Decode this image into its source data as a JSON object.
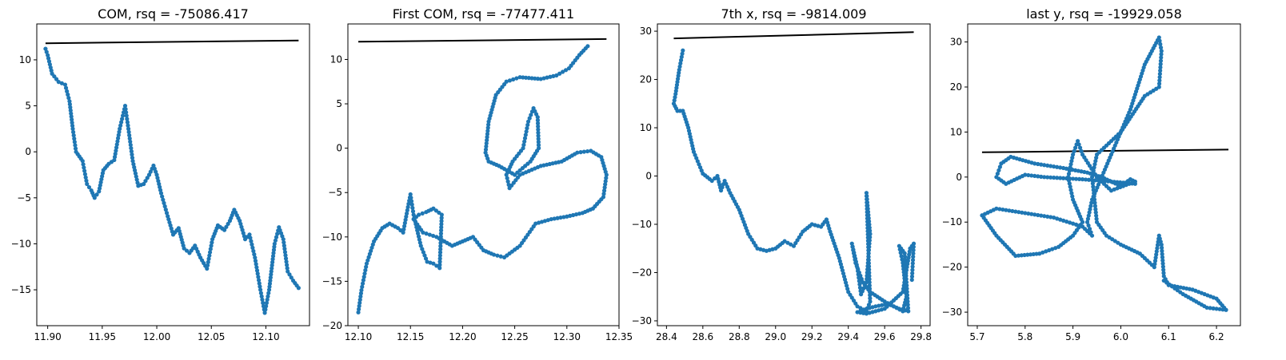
{
  "colors": {
    "scatter": "#1f77b4",
    "fit_line": "#000000",
    "axes": "#000000",
    "background": "#ffffff"
  },
  "chart_data": [
    {
      "type": "scatter",
      "title": "COM, rsq = -75086.417",
      "xlabel": "",
      "ylabel": "",
      "xlim": [
        11.89,
        12.14
      ],
      "ylim": [
        -18.9,
        13.9
      ],
      "xticks": [
        "11.90",
        "11.95",
        "12.00",
        "12.05",
        "12.10"
      ],
      "yticks": [
        "10",
        "5",
        "0",
        "−5",
        "−10",
        "−15"
      ],
      "grid": false,
      "fit_line": {
        "x": [
          11.898,
          12.13
        ],
        "y": [
          11.8,
          12.1
        ]
      },
      "series": [
        {
          "path": [
            [
              11.898,
              11.2
            ],
            [
              11.9,
              10.5
            ],
            [
              11.904,
              8.5
            ],
            [
              11.91,
              7.6
            ],
            [
              11.916,
              7.3
            ],
            [
              11.92,
              5.5
            ],
            [
              11.923,
              2.5
            ],
            [
              11.926,
              0.0
            ],
            [
              11.932,
              -1.0
            ],
            [
              11.936,
              -3.5
            ],
            [
              11.94,
              -4.2
            ],
            [
              11.943,
              -5.0
            ],
            [
              11.947,
              -4.3
            ],
            [
              11.951,
              -2.0
            ],
            [
              11.956,
              -1.3
            ],
            [
              11.961,
              -0.9
            ],
            [
              11.966,
              2.5
            ],
            [
              11.971,
              5.0
            ],
            [
              11.974,
              2.5
            ],
            [
              11.978,
              -1.0
            ],
            [
              11.983,
              -3.7
            ],
            [
              11.988,
              -3.5
            ],
            [
              11.993,
              -2.5
            ],
            [
              11.997,
              -1.5
            ],
            [
              12.0,
              -2.5
            ],
            [
              12.004,
              -4.5
            ],
            [
              12.01,
              -7.0
            ],
            [
              12.015,
              -9.0
            ],
            [
              12.02,
              -8.3
            ],
            [
              12.025,
              -10.5
            ],
            [
              12.03,
              -11.0
            ],
            [
              12.035,
              -10.2
            ],
            [
              12.04,
              -11.5
            ],
            [
              12.046,
              -12.7
            ],
            [
              12.051,
              -9.5
            ],
            [
              12.056,
              -8.0
            ],
            [
              12.062,
              -8.5
            ],
            [
              12.067,
              -7.5
            ],
            [
              12.071,
              -6.3
            ],
            [
              12.076,
              -7.5
            ],
            [
              12.081,
              -9.5
            ],
            [
              12.085,
              -9.0
            ],
            [
              12.09,
              -11.5
            ],
            [
              12.095,
              -15.0
            ],
            [
              12.099,
              -17.5
            ],
            [
              12.103,
              -15.0
            ],
            [
              12.108,
              -10.0
            ],
            [
              12.112,
              -8.2
            ],
            [
              12.116,
              -9.5
            ],
            [
              12.12,
              -13.0
            ],
            [
              12.125,
              -14.0
            ],
            [
              12.13,
              -14.8
            ]
          ]
        }
      ]
    },
    {
      "type": "scatter",
      "title": "First COM, rsq = -77477.411",
      "xlabel": "",
      "ylabel": "",
      "xlim": [
        12.09,
        12.35
      ],
      "ylim": [
        -20,
        14
      ],
      "xticks": [
        "12.10",
        "12.15",
        "12.20",
        "12.25",
        "12.30",
        "12.35"
      ],
      "yticks": [
        "10",
        "5",
        "0",
        "−5",
        "−10",
        "−15",
        "−20"
      ],
      "grid": false,
      "fit_line": {
        "x": [
          12.1,
          12.338
        ],
        "y": [
          12.0,
          12.3
        ]
      },
      "series": [
        {
          "path": [
            [
              12.1,
              -18.5
            ],
            [
              12.103,
              -16.0
            ],
            [
              12.108,
              -13.0
            ],
            [
              12.115,
              -10.5
            ],
            [
              12.123,
              -9.0
            ],
            [
              12.13,
              -8.5
            ],
            [
              12.138,
              -9.0
            ],
            [
              12.143,
              -9.5
            ],
            [
              12.147,
              -7.0
            ],
            [
              12.15,
              -5.2
            ],
            [
              12.153,
              -7.5
            ],
            [
              12.16,
              -11.0
            ],
            [
              12.166,
              -12.8
            ],
            [
              12.172,
              -13.0
            ],
            [
              12.178,
              -13.5
            ],
            [
              12.18,
              -7.5
            ],
            [
              12.172,
              -6.8
            ],
            [
              12.165,
              -7.2
            ],
            [
              12.158,
              -7.5
            ],
            [
              12.153,
              -8.0
            ],
            [
              12.162,
              -9.5
            ],
            [
              12.175,
              -10.0
            ],
            [
              12.19,
              -11.0
            ],
            [
              12.2,
              -10.5
            ],
            [
              12.21,
              -10.0
            ],
            [
              12.22,
              -11.5
            ],
            [
              12.23,
              -12.0
            ],
            [
              12.24,
              -12.3
            ],
            [
              12.255,
              -11.0
            ],
            [
              12.27,
              -8.5
            ],
            [
              12.285,
              -8.0
            ],
            [
              12.3,
              -7.7
            ],
            [
              12.315,
              -7.3
            ],
            [
              12.325,
              -6.8
            ],
            [
              12.335,
              -5.5
            ],
            [
              12.338,
              -3.0
            ],
            [
              12.333,
              -1.0
            ],
            [
              12.323,
              -0.3
            ],
            [
              12.31,
              -0.5
            ],
            [
              12.295,
              -1.5
            ],
            [
              12.275,
              -2.0
            ],
            [
              12.255,
              -3.0
            ],
            [
              12.245,
              -4.5
            ],
            [
              12.242,
              -3.0
            ],
            [
              12.248,
              -1.5
            ],
            [
              12.258,
              0.0
            ],
            [
              12.263,
              3.0
            ],
            [
              12.268,
              4.5
            ],
            [
              12.272,
              3.5
            ],
            [
              12.273,
              0.0
            ],
            [
              12.265,
              -1.5
            ],
            [
              12.25,
              -3.0
            ],
            [
              12.235,
              -2.0
            ],
            [
              12.225,
              -1.5
            ],
            [
              12.222,
              -0.5
            ],
            [
              12.225,
              3.0
            ],
            [
              12.232,
              6.0
            ],
            [
              12.242,
              7.5
            ],
            [
              12.255,
              8.0
            ],
            [
              12.275,
              7.8
            ],
            [
              12.29,
              8.2
            ],
            [
              12.302,
              9.0
            ],
            [
              12.312,
              10.5
            ],
            [
              12.32,
              11.5
            ]
          ]
        }
      ]
    },
    {
      "type": "scatter",
      "title": "7th x, rsq = -9814.009",
      "xlabel": "",
      "ylabel": "",
      "xlim": [
        28.35,
        29.85
      ],
      "ylim": [
        -31,
        31.5
      ],
      "xticks": [
        "28.4",
        "28.6",
        "28.8",
        "29.0",
        "29.2",
        "29.4",
        "29.6",
        "29.8"
      ],
      "yticks": [
        "30",
        "20",
        "10",
        "0",
        "−10",
        "−20",
        "−30"
      ],
      "grid": false,
      "fit_line": {
        "x": [
          28.44,
          29.76
        ],
        "y": [
          28.5,
          29.8
        ]
      },
      "series": [
        {
          "path": [
            [
              28.49,
              26.0
            ],
            [
              28.47,
              22.0
            ],
            [
              28.45,
              17.0
            ],
            [
              28.44,
              15.0
            ],
            [
              28.46,
              13.5
            ],
            [
              28.49,
              13.5
            ],
            [
              28.52,
              10.0
            ],
            [
              28.55,
              5.0
            ],
            [
              28.6,
              0.5
            ],
            [
              28.65,
              -1.0
            ],
            [
              28.68,
              0.0
            ],
            [
              28.7,
              -3.0
            ],
            [
              28.72,
              -1.0
            ],
            [
              28.75,
              -3.5
            ],
            [
              28.8,
              -7.0
            ],
            [
              28.85,
              -12.0
            ],
            [
              28.9,
              -15.0
            ],
            [
              28.95,
              -15.5
            ],
            [
              29.0,
              -15.0
            ],
            [
              29.05,
              -13.5
            ],
            [
              29.1,
              -14.5
            ],
            [
              29.15,
              -11.5
            ],
            [
              29.2,
              -10.0
            ],
            [
              29.25,
              -10.5
            ],
            [
              29.28,
              -9.0
            ],
            [
              29.3,
              -11.5
            ],
            [
              29.35,
              -17.0
            ],
            [
              29.4,
              -24.0
            ],
            [
              29.45,
              -27.0
            ],
            [
              29.5,
              -28.0
            ],
            [
              29.52,
              -26.0
            ],
            [
              29.5,
              -3.5
            ],
            [
              29.52,
              -12.0
            ],
            [
              29.5,
              -22.0
            ],
            [
              29.47,
              -24.5
            ],
            [
              29.45,
              -19.0
            ],
            [
              29.42,
              -14.0
            ],
            [
              29.44,
              -18.0
            ],
            [
              29.48,
              -22.0
            ],
            [
              29.52,
              -24.0
            ],
            [
              29.56,
              -25.0
            ],
            [
              29.6,
              -26.0
            ],
            [
              29.65,
              -27.0
            ],
            [
              29.7,
              -28.0
            ],
            [
              29.72,
              -25.0
            ],
            [
              29.7,
              -18.0
            ],
            [
              29.68,
              -14.5
            ],
            [
              29.71,
              -16.0
            ],
            [
              29.73,
              -28.0
            ],
            [
              29.68,
              -27.5
            ],
            [
              29.62,
              -26.5
            ],
            [
              29.55,
              -27.0
            ],
            [
              29.5,
              -27.5
            ],
            [
              29.45,
              -28.2
            ],
            [
              29.5,
              -28.5
            ],
            [
              29.6,
              -27.5
            ],
            [
              29.7,
              -24.0
            ],
            [
              29.74,
              -15.0
            ],
            [
              29.76,
              -14.0
            ],
            [
              29.75,
              -21.5
            ]
          ]
        }
      ]
    },
    {
      "type": "scatter",
      "title": "last y, rsq = -19929.058",
      "xlabel": "",
      "ylabel": "",
      "xlim": [
        5.68,
        6.25
      ],
      "ylim": [
        -33,
        34
      ],
      "xticks": [
        "5.7",
        "5.8",
        "5.9",
        "6.0",
        "6.1",
        "6.2"
      ],
      "yticks": [
        "30",
        "20",
        "10",
        "0",
        "−10",
        "−20",
        "−30"
      ],
      "grid": false,
      "fit_line": {
        "x": [
          5.71,
          6.225
        ],
        "y": [
          5.5,
          6.1
        ]
      },
      "series": [
        {
          "path": [
            [
              6.03,
              -1.5
            ],
            [
              5.98,
              -1.0
            ],
            [
              5.92,
              -0.5
            ],
            [
              5.84,
              0.0
            ],
            [
              5.8,
              0.5
            ],
            [
              5.76,
              -1.5
            ],
            [
              5.74,
              0.0
            ],
            [
              5.75,
              3.0
            ],
            [
              5.77,
              4.5
            ],
            [
              5.82,
              3.0
            ],
            [
              5.88,
              2.0
            ],
            [
              5.93,
              1.0
            ],
            [
              5.96,
              0.0
            ],
            [
              6.0,
              -2.0
            ],
            [
              6.02,
              -0.5
            ],
            [
              6.03,
              -1.0
            ],
            [
              5.98,
              -3.0
            ],
            [
              5.95,
              0.0
            ],
            [
              5.92,
              5.0
            ],
            [
              5.91,
              8.0
            ],
            [
              5.9,
              5.0
            ],
            [
              5.89,
              0.0
            ],
            [
              5.9,
              -5.0
            ],
            [
              5.92,
              -10.0
            ],
            [
              5.9,
              -13.0
            ],
            [
              5.87,
              -15.5
            ],
            [
              5.83,
              -17.0
            ],
            [
              5.78,
              -17.5
            ],
            [
              5.74,
              -13.0
            ],
            [
              5.71,
              -8.5
            ],
            [
              5.74,
              -7.0
            ],
            [
              5.8,
              -8.0
            ],
            [
              5.86,
              -9.0
            ],
            [
              5.92,
              -11.0
            ],
            [
              5.94,
              -13.0
            ],
            [
              5.93,
              -10.0
            ],
            [
              5.94,
              -5.0
            ],
            [
              5.98,
              5.0
            ],
            [
              6.02,
              15.0
            ],
            [
              6.05,
              25.0
            ],
            [
              6.08,
              31.0
            ],
            [
              6.085,
              28.0
            ],
            [
              6.08,
              20.0
            ],
            [
              6.05,
              18.0
            ],
            [
              6.0,
              10.0
            ],
            [
              5.95,
              5.0
            ],
            [
              5.94,
              0.0
            ],
            [
              5.95,
              -10.0
            ],
            [
              5.97,
              -13.0
            ],
            [
              6.0,
              -15.0
            ],
            [
              6.04,
              -17.0
            ],
            [
              6.07,
              -20.0
            ],
            [
              6.08,
              -13.0
            ],
            [
              6.085,
              -15.0
            ],
            [
              6.09,
              -22.0
            ],
            [
              6.1,
              -24.0
            ],
            [
              6.15,
              -25.0
            ],
            [
              6.2,
              -27.0
            ],
            [
              6.22,
              -29.5
            ],
            [
              6.18,
              -29.0
            ],
            [
              6.13,
              -26.0
            ],
            [
              6.09,
              -23.0
            ]
          ]
        }
      ]
    }
  ]
}
